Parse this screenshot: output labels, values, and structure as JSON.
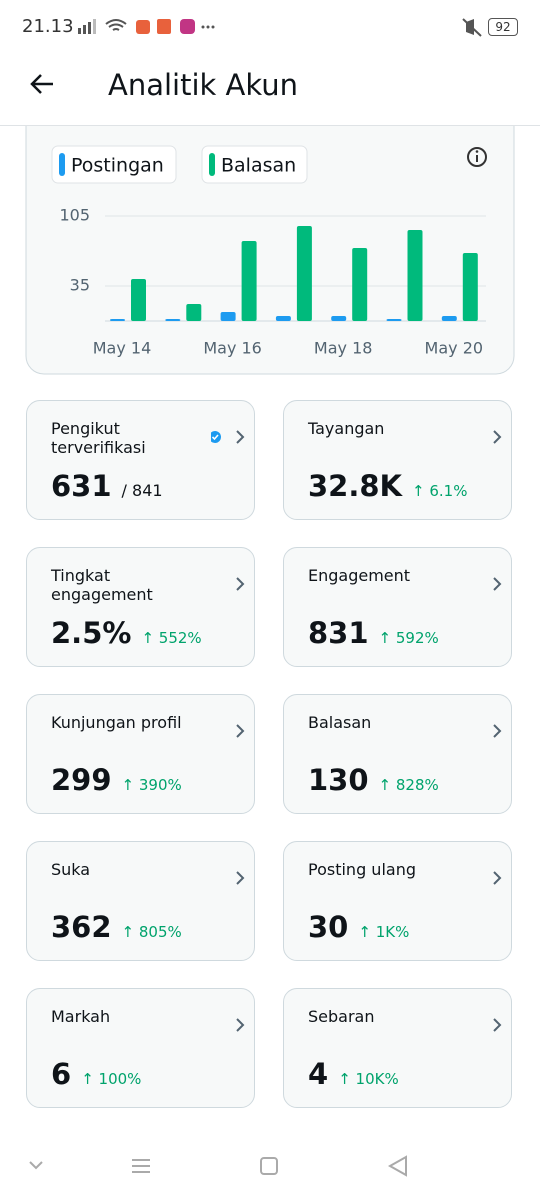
{
  "status_bar": {
    "time": "21.13",
    "battery": "92"
  },
  "header": {
    "title": "Analitik Akun"
  },
  "chart_data": {
    "type": "bar",
    "categories": [
      "May 14",
      null,
      "May 16",
      null,
      "May 18",
      null,
      "May 20"
    ],
    "series": [
      {
        "name": "Postingan",
        "color": "#1d9bf0",
        "values": [
          1,
          2,
          9,
          5,
          5,
          2,
          5
        ]
      },
      {
        "name": "Balasan",
        "color": "#00ba7c",
        "values": [
          42,
          17,
          80,
          95,
          73,
          91,
          68
        ]
      }
    ],
    "ylim": [
      0,
      105
    ],
    "yticks": [
      35,
      105
    ],
    "grid": true
  },
  "metrics": [
    {
      "label": "Pengikut terverifikasi",
      "value": "631",
      "total": "/ 841"
    },
    {
      "label": "Tayangan",
      "value": "32.8K",
      "change": "↑ 6.1%"
    },
    {
      "label": "Tingkat engagement",
      "value": "2.5%",
      "change": "↑ 552%"
    },
    {
      "label": "Engagement",
      "value": "831",
      "change": "↑ 592%"
    },
    {
      "label": "Kunjungan profil",
      "value": "299",
      "change": "↑ 390%"
    },
    {
      "label": "Balasan",
      "value": "130",
      "change": "↑ 828%"
    },
    {
      "label": "Suka",
      "value": "362",
      "change": "↑ 805%"
    },
    {
      "label": "Posting ulang",
      "value": "30",
      "change": "↑ 1K%"
    },
    {
      "label": "Markah",
      "value": "6",
      "change": "↑ 100%"
    },
    {
      "label": "Sebaran",
      "value": "4",
      "change": "↑ 10K%"
    }
  ]
}
